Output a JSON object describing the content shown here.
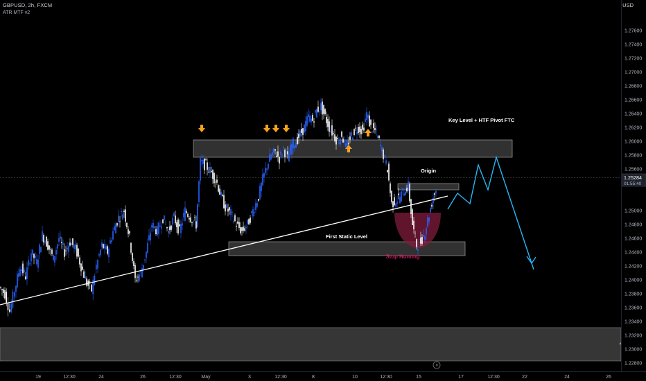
{
  "header": {
    "symbol": "GBPUSD, 2h, FXCM",
    "indicator": "ATR MTF v2",
    "currency": "USD"
  },
  "price_axis": {
    "ticks": [
      "1.27600",
      "1.27400",
      "1.27200",
      "1.27000",
      "1.26800",
      "1.26600",
      "1.26400",
      "1.26200",
      "1.26000",
      "1.25800",
      "1.25600",
      "1.25400",
      "1.25000",
      "1.24800",
      "1.24600",
      "1.24400",
      "1.24200",
      "1.24000",
      "1.23800",
      "1.23600",
      "1.23400",
      "1.23200",
      "1.23000",
      "1.22800"
    ],
    "current_price": "1.25284",
    "countdown": "01:55:40"
  },
  "time_axis": {
    "labels": [
      "19",
      "12:30",
      "24",
      "26",
      "12:30",
      "May",
      "3",
      "12:30",
      "8",
      "10",
      "12:30",
      "15",
      "17",
      "12:30",
      "22",
      "24",
      "26"
    ]
  },
  "annotations": {
    "key_level": "Key Level + HTF Pivot FTC",
    "origin": "Origin",
    "first_static": "First Static Level",
    "stop_hunting": "Stop Hunting"
  },
  "colors": {
    "bull": "#2962ff",
    "bear": "#ffffff",
    "projection": "#29b6f6",
    "arrow": "#f7a21b",
    "stop_zone": "#801c3c",
    "stop_text": "#c2185b",
    "zone_fill": "#3a3a3a"
  },
  "chart_data": {
    "type": "candlestick",
    "ylim": [
      1.227,
      1.2775
    ],
    "path_points": [
      [
        0,
        1.239
      ],
      [
        8,
        1.238
      ],
      [
        15,
        1.2355
      ],
      [
        22,
        1.2385
      ],
      [
        30,
        1.242
      ],
      [
        38,
        1.2405
      ],
      [
        46,
        1.244
      ],
      [
        54,
        1.2425
      ],
      [
        62,
        1.2465
      ],
      [
        70,
        1.245
      ],
      [
        78,
        1.243
      ],
      [
        86,
        1.246
      ],
      [
        94,
        1.244
      ],
      [
        102,
        1.2455
      ],
      [
        110,
        1.2445
      ],
      [
        118,
        1.242
      ],
      [
        126,
        1.2395
      ],
      [
        133,
        1.2385
      ],
      [
        140,
        1.242
      ],
      [
        148,
        1.245
      ],
      [
        156,
        1.244
      ],
      [
        164,
        1.247
      ],
      [
        172,
        1.249
      ],
      [
        180,
        1.25
      ],
      [
        188,
        1.246
      ],
      [
        196,
        1.24
      ],
      [
        204,
        1.241
      ],
      [
        212,
        1.244
      ],
      [
        220,
        1.248
      ],
      [
        228,
        1.247
      ],
      [
        236,
        1.249
      ],
      [
        244,
        1.247
      ],
      [
        252,
        1.249
      ],
      [
        260,
        1.247
      ],
      [
        268,
        1.25
      ],
      [
        276,
        1.249
      ],
      [
        284,
        1.248
      ],
      [
        290,
        1.257
      ],
      [
        298,
        1.2565
      ],
      [
        306,
        1.2555
      ],
      [
        314,
        1.254
      ],
      [
        320,
        1.252
      ],
      [
        326,
        1.2505
      ],
      [
        334,
        1.2495
      ],
      [
        342,
        1.248
      ],
      [
        350,
        1.247
      ],
      [
        358,
        1.248
      ],
      [
        366,
        1.25
      ],
      [
        374,
        1.252
      ],
      [
        380,
        1.2545
      ],
      [
        386,
        1.2565
      ],
      [
        392,
        1.258
      ],
      [
        398,
        1.2585
      ],
      [
        404,
        1.2575
      ],
      [
        410,
        1.259
      ],
      [
        416,
        1.2575
      ],
      [
        422,
        1.2595
      ],
      [
        428,
        1.26
      ],
      [
        434,
        1.261
      ],
      [
        440,
        1.262
      ],
      [
        446,
        1.2635
      ],
      [
        452,
        1.263
      ],
      [
        458,
        1.2645
      ],
      [
        464,
        1.265
      ],
      [
        470,
        1.2635
      ],
      [
        476,
        1.262
      ],
      [
        482,
        1.261
      ],
      [
        488,
        1.26
      ],
      [
        494,
        1.261
      ],
      [
        500,
        1.259
      ],
      [
        506,
        1.2605
      ],
      [
        512,
        1.2615
      ],
      [
        518,
        1.262
      ],
      [
        524,
        1.2615
      ],
      [
        530,
        1.264
      ],
      [
        536,
        1.262
      ],
      [
        542,
        1.2615
      ],
      [
        548,
        1.26
      ],
      [
        554,
        1.258
      ],
      [
        560,
        1.256
      ],
      [
        566,
        1.251
      ],
      [
        572,
        1.2515
      ],
      [
        578,
        1.252
      ],
      [
        584,
        1.253
      ],
      [
        590,
        1.2535
      ],
      [
        596,
        1.248
      ],
      [
        602,
        1.245
      ],
      [
        608,
        1.2455
      ],
      [
        614,
        1.247
      ],
      [
        620,
        1.2495
      ],
      [
        626,
        1.252
      ],
      [
        630,
        1.253
      ]
    ],
    "zones": [
      {
        "name": "Key Level + HTF Pivot FTC",
        "x0": "Apr 29",
        "x1": "May 18",
        "y0": 1.2577,
        "y1": 1.2602
      },
      {
        "name": "Origin",
        "x0": "May 14",
        "x1": "May 16",
        "y0": 1.253,
        "y1": 1.2539
      },
      {
        "name": "First Static Level",
        "x0": "May 2",
        "x1": "May 16",
        "y0": 1.2435,
        "y1": 1.2455
      }
    ],
    "trendline": {
      "from": [
        "Apr 18",
        1.2343
      ],
      "to": [
        "May 16",
        1.2503
      ]
    },
    "projection": [
      1.2502,
      1.2525,
      1.251,
      1.2566,
      1.253,
      1.2577,
      1.2415
    ],
    "signal_arrows": [
      {
        "at": "Apr 29",
        "dir": "down"
      },
      {
        "at": "May 3",
        "dir": "down"
      },
      {
        "at": "May 3",
        "dir": "down"
      },
      {
        "at": "May 4",
        "dir": "down"
      },
      {
        "at": "May 9",
        "dir": "up"
      },
      {
        "at": "May 10",
        "dir": "up"
      }
    ],
    "grid": false
  }
}
